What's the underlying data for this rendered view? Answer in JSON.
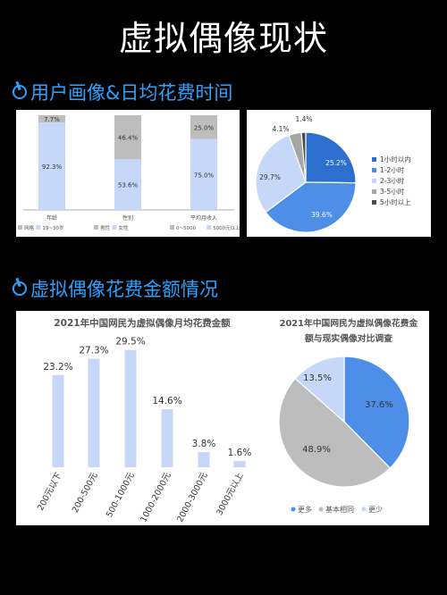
{
  "page": {
    "title": "虚拟偶像现状",
    "section1": "用户画像&日均花费时间",
    "section2": "虚拟偶像花费金额情况"
  },
  "chart_data": [
    {
      "type": "bar",
      "stacked": true,
      "categories": [
        "年龄",
        "性别",
        "平均月收入"
      ],
      "series": [
        {
          "name": "",
          "values": [
            92.3,
            53.6,
            75.0
          ],
          "color": "#c6d7f7"
        },
        {
          "name": "",
          "values": [
            7.7,
            46.4,
            25.0
          ],
          "color": "#bdbdbd"
        }
      ],
      "labels": [
        [
          "92.3%",
          "53.6%",
          "75.0%"
        ],
        [
          "7.7%",
          "46.4%",
          "25.0%"
        ]
      ],
      "legends": [
        [
          {
            "name": "网格",
            "color": "#bdbdbd"
          },
          {
            "name": "19~30岁",
            "color": "#c6d7f7"
          }
        ],
        [
          {
            "name": "男性",
            "color": "#bdbdbd"
          },
          {
            "name": "女性",
            "color": "#c6d7f7"
          }
        ],
        [
          {
            "name": "0~5000",
            "color": "#bdbdbd"
          },
          {
            "name": "5000元以上",
            "color": "#c6d7f7"
          }
        ]
      ]
    },
    {
      "type": "pie",
      "slices": [
        {
          "name": "1小时以内",
          "value": 25.2,
          "label": "25.2%",
          "color": "#2d6fcf"
        },
        {
          "name": "1-2小时",
          "value": 39.6,
          "label": "39.6%",
          "color": "#4d8fe8"
        },
        {
          "name": "2-3小时",
          "value": 29.7,
          "label": "29.7%",
          "color": "#c6d7f7"
        },
        {
          "name": "3-5小时",
          "value": 4.1,
          "label": "4.1%",
          "color": "#a6a6a6"
        },
        {
          "name": "5小时以上",
          "value": 1.4,
          "label": "1.4%",
          "color": "#4a4a4a"
        }
      ]
    },
    {
      "type": "bar",
      "title": "2021年中国网民为虚拟偶像月均花费金额",
      "categories": [
        "200元以下",
        "200-500元",
        "500-1000元",
        "1000-2000元",
        "2000-3000元",
        "3000元以上"
      ],
      "values": [
        23.2,
        27.3,
        29.5,
        14.6,
        3.8,
        1.6
      ],
      "labels": [
        "23.2%",
        "27.3%",
        "29.5%",
        "14.6%",
        "3.8%",
        "1.6%"
      ],
      "color": "#c6d7f7"
    },
    {
      "type": "pie",
      "title_lines": [
        "2021年中国网民为虚拟偶像花费金",
        "额与现实偶像对比调查"
      ],
      "slices": [
        {
          "name": "更多",
          "value": 37.6,
          "label": "37.6%",
          "color": "#4d8fe8"
        },
        {
          "name": "基本相同",
          "value": 48.9,
          "label": "48.9%",
          "color": "#bdbdbd"
        },
        {
          "name": "更少",
          "value": 13.5,
          "label": "13.5%",
          "color": "#c6d7f7"
        }
      ]
    }
  ]
}
